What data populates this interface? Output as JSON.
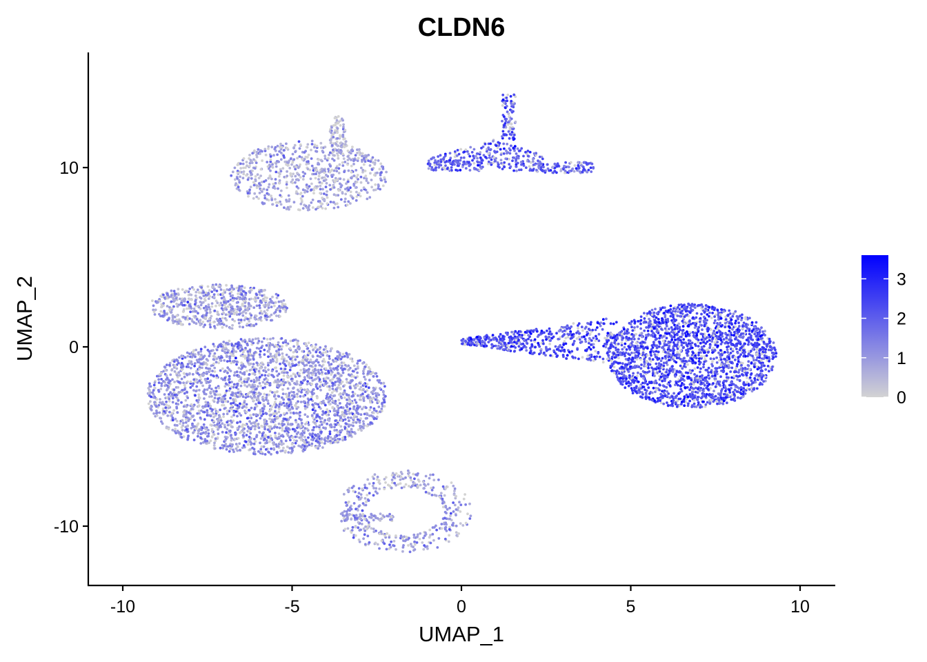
{
  "chart_data": {
    "type": "scatter",
    "title": "CLDN6",
    "xlabel": "UMAP_1",
    "ylabel": "UMAP_2",
    "xlim": [
      -11,
      11
    ],
    "ylim": [
      -13.5,
      16.5
    ],
    "xticks": [
      -10,
      -5,
      0,
      5,
      10
    ],
    "xtick_labels": [
      "-10",
      "-5",
      "0",
      "5",
      "10"
    ],
    "yticks": [
      -10,
      0,
      10
    ],
    "ytick_labels": [
      "-10",
      "0",
      "10"
    ],
    "grid": false,
    "legend": {
      "placement": "right",
      "type": "colorbar",
      "range": [
        0,
        3.6
      ],
      "ticks": [
        0,
        1,
        2,
        3
      ],
      "tick_labels": [
        "0",
        "1",
        "2",
        "3"
      ],
      "low_color": "#d3d3d3",
      "high_color": "#0000ff"
    },
    "clusters": [
      {
        "id": "top-left",
        "center": [
          -5.6,
          9.3
        ],
        "x_range": [
          -6.8,
          -2.2
        ],
        "y_range": [
          7.6,
          11.5
        ],
        "mean_expression": 0.8
      },
      {
        "id": "top-left-arm",
        "center": [
          -3.7,
          11.8
        ],
        "x_range": [
          -3.9,
          -3.4
        ],
        "y_range": [
          10.5,
          12.9
        ],
        "mean_expression": 0.5
      },
      {
        "id": "top-right",
        "center": [
          1.3,
          10.8
        ],
        "x_range": [
          -1.5,
          3.9
        ],
        "y_range": [
          9.3,
          14.1
        ],
        "mean_expression": 2.0
      },
      {
        "id": "upper-left",
        "center": [
          -6.5,
          2.4
        ],
        "x_range": [
          -9.2,
          -5.1
        ],
        "y_range": [
          1.0,
          3.5
        ],
        "mean_expression": 0.9
      },
      {
        "id": "left-main",
        "center": [
          -5.5,
          -2.5
        ],
        "x_range": [
          -9.3,
          -2.2
        ],
        "y_range": [
          -6.0,
          0.5
        ],
        "mean_expression": 1.1
      },
      {
        "id": "right-main",
        "center": [
          6.6,
          -0.4
        ],
        "x_range": [
          0.0,
          9.2
        ],
        "y_range": [
          -3.5,
          2.5
        ],
        "mean_expression": 2.3
      },
      {
        "id": "bottom",
        "center": [
          -1.4,
          -9.5
        ],
        "x_range": [
          -3.6,
          0.2
        ],
        "y_range": [
          -11.4,
          -7.0
        ],
        "mean_expression": 0.9
      }
    ]
  }
}
